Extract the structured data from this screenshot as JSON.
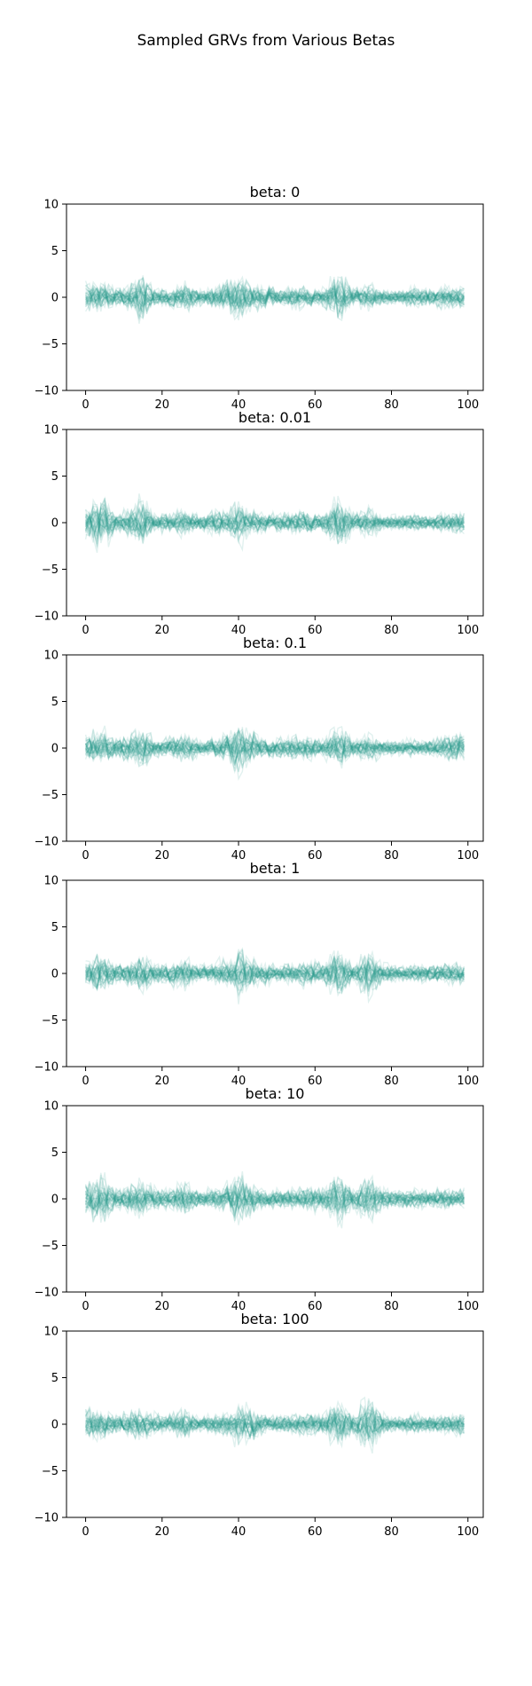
{
  "figure": {
    "title": "Sampled GRVs from Various Betas",
    "line_color": "#2a9d8f"
  },
  "chart_data": [
    {
      "type": "line",
      "title": "beta: 0",
      "xlabel": "",
      "ylabel": "",
      "xlim": [
        -5,
        104
      ],
      "ylim": [
        -10,
        10
      ],
      "xticks": [
        0,
        20,
        40,
        60,
        80,
        100
      ],
      "yticks": [
        -10,
        -5,
        0,
        5,
        10
      ],
      "grid": false,
      "n_samples_shown": 40,
      "envelope": {
        "x": [
          0,
          4,
          8,
          13,
          14,
          18,
          22,
          26,
          30,
          34,
          38,
          40,
          42,
          46,
          50,
          54,
          58,
          62,
          66,
          70,
          74,
          78,
          82,
          86,
          90,
          94,
          98
        ],
        "amplitude": [
          4.5,
          4.5,
          2.5,
          4,
          7,
          2.5,
          2.5,
          4,
          2,
          3,
          4.5,
          8,
          5,
          3,
          2.5,
          3,
          3,
          2.5,
          7,
          2.5,
          3.5,
          2,
          2,
          3,
          2,
          3,
          3
        ]
      }
    },
    {
      "type": "line",
      "title": "beta: 0.01",
      "xlabel": "",
      "ylabel": "",
      "xlim": [
        -5,
        104
      ],
      "ylim": [
        -10,
        10
      ],
      "xticks": [
        0,
        20,
        40,
        60,
        80,
        100
      ],
      "yticks": [
        -10,
        -5,
        0,
        5,
        10
      ],
      "grid": false,
      "n_samples_shown": 40,
      "envelope": {
        "x": [
          0,
          4,
          8,
          13,
          14,
          18,
          22,
          26,
          30,
          34,
          38,
          40,
          42,
          46,
          50,
          54,
          58,
          62,
          66,
          70,
          74,
          78,
          82,
          86,
          90,
          94,
          98
        ],
        "amplitude": [
          4.5,
          8,
          3,
          4.5,
          7.5,
          2.5,
          3,
          4,
          2,
          3,
          4,
          7,
          4,
          3,
          2.5,
          3,
          3,
          2.5,
          7.5,
          2.5,
          4,
          2,
          2,
          2.5,
          2,
          2.5,
          3
        ]
      }
    },
    {
      "type": "line",
      "title": "beta: 0.1",
      "xlabel": "",
      "ylabel": "",
      "xlim": [
        -5,
        104
      ],
      "ylim": [
        -10,
        10
      ],
      "xticks": [
        0,
        20,
        40,
        60,
        80,
        100
      ],
      "yticks": [
        -10,
        -5,
        0,
        5,
        10
      ],
      "grid": false,
      "n_samples_shown": 40,
      "envelope": {
        "x": [
          0,
          4,
          8,
          13,
          14,
          18,
          22,
          26,
          30,
          34,
          38,
          40,
          42,
          46,
          50,
          54,
          58,
          62,
          66,
          70,
          74,
          78,
          82,
          86,
          90,
          94,
          98
        ],
        "amplitude": [
          3.5,
          5.5,
          2.5,
          4.5,
          6.5,
          2.5,
          3,
          4,
          2,
          3,
          4.5,
          8.5,
          5,
          3,
          2.5,
          3.5,
          3,
          2.5,
          6,
          2.5,
          4,
          2,
          2,
          2.5,
          2,
          3.5,
          4
        ]
      }
    },
    {
      "type": "line",
      "title": "beta: 1",
      "xlabel": "",
      "ylabel": "",
      "xlim": [
        -5,
        104
      ],
      "ylim": [
        -10,
        10
      ],
      "xticks": [
        0,
        20,
        40,
        60,
        80,
        100
      ],
      "yticks": [
        -10,
        -5,
        0,
        5,
        10
      ],
      "grid": false,
      "n_samples_shown": 40,
      "envelope": {
        "x": [
          0,
          4,
          8,
          13,
          14,
          18,
          22,
          26,
          30,
          34,
          38,
          40,
          42,
          46,
          50,
          54,
          58,
          62,
          66,
          70,
          74,
          78,
          82,
          86,
          90,
          94,
          98
        ],
        "amplitude": [
          4,
          5,
          2.5,
          4,
          6.5,
          2.5,
          3,
          4,
          2,
          3,
          4.5,
          8,
          5,
          3,
          2.5,
          3,
          3.5,
          3,
          7.5,
          2.5,
          7.5,
          2.5,
          2,
          2.5,
          2,
          3,
          3
        ]
      }
    },
    {
      "type": "line",
      "title": "beta: 10",
      "xlabel": "",
      "ylabel": "",
      "xlim": [
        -5,
        104
      ],
      "ylim": [
        -10,
        10
      ],
      "xticks": [
        0,
        20,
        40,
        60,
        80,
        100
      ],
      "yticks": [
        -10,
        -5,
        0,
        5,
        10
      ],
      "grid": false,
      "n_samples_shown": 40,
      "envelope": {
        "x": [
          0,
          4,
          8,
          13,
          14,
          18,
          22,
          26,
          30,
          34,
          38,
          40,
          42,
          46,
          50,
          54,
          58,
          62,
          66,
          70,
          74,
          78,
          82,
          86,
          90,
          94,
          98
        ],
        "amplitude": [
          5,
          7,
          3,
          4.5,
          6.5,
          3,
          3,
          4.5,
          2.5,
          3,
          4.5,
          9,
          5,
          3,
          2.5,
          3,
          3.5,
          3,
          8,
          3,
          7,
          2.5,
          2.5,
          3,
          2.5,
          3,
          3
        ]
      }
    },
    {
      "type": "line",
      "title": "beta: 100",
      "xlabel": "",
      "ylabel": "",
      "xlim": [
        -5,
        104
      ],
      "ylim": [
        -10,
        10
      ],
      "xticks": [
        0,
        20,
        40,
        60,
        80,
        100
      ],
      "yticks": [
        -10,
        -5,
        0,
        5,
        10
      ],
      "grid": false,
      "n_samples_shown": 40,
      "envelope": {
        "x": [
          0,
          4,
          8,
          13,
          14,
          18,
          22,
          26,
          30,
          34,
          38,
          40,
          42,
          46,
          50,
          54,
          58,
          62,
          66,
          70,
          74,
          78,
          82,
          86,
          90,
          94,
          98
        ],
        "amplitude": [
          4,
          4.5,
          2.5,
          4,
          5,
          2.5,
          3,
          4,
          2,
          3,
          4,
          6,
          5,
          3,
          2.5,
          3,
          3,
          3,
          7,
          2.5,
          8,
          2.5,
          2,
          3,
          2,
          2.5,
          3
        ]
      }
    }
  ]
}
